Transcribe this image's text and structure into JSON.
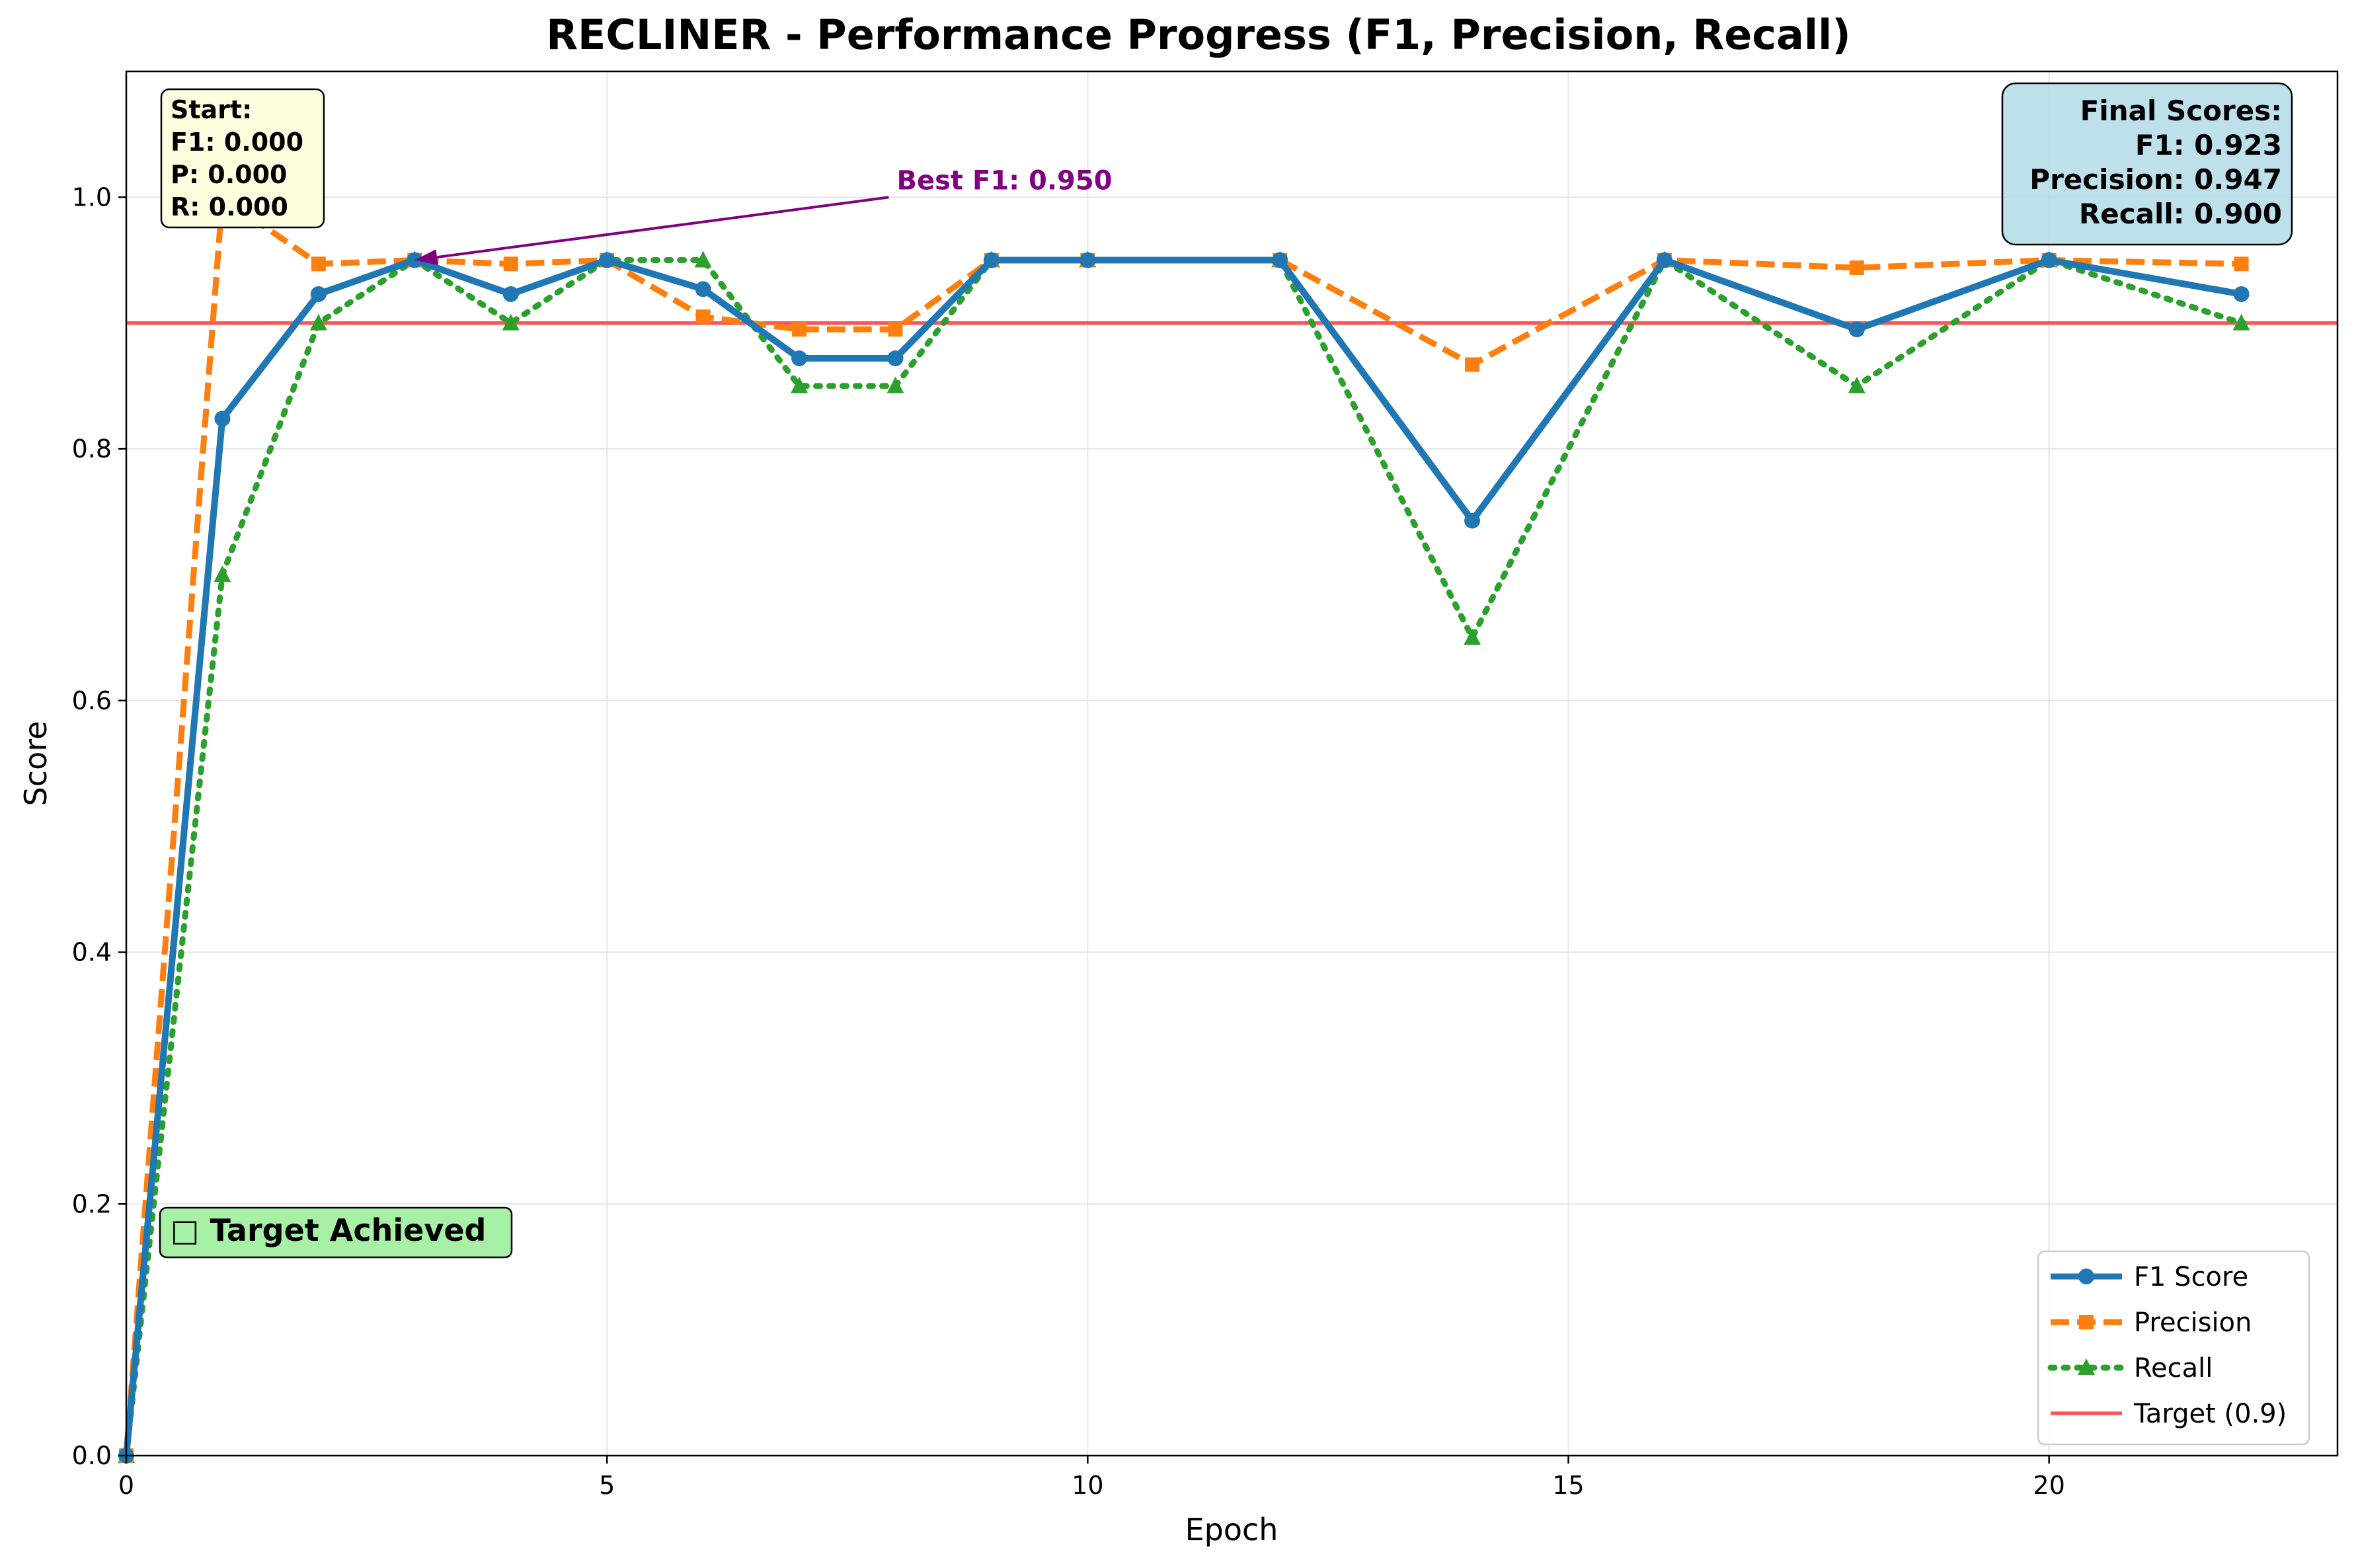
{
  "chart_data": {
    "type": "line",
    "title": "RECLINER - Performance Progress (F1, Precision, Recall)",
    "xlabel": "Epoch",
    "ylabel": "Score",
    "xlim": [
      0,
      23
    ],
    "ylim": [
      0,
      1.1
    ],
    "x_ticks": [
      0,
      5,
      10,
      15,
      20
    ],
    "x_tick_labels": [
      "0",
      "5",
      "10",
      "15",
      "20"
    ],
    "y_ticks": [
      0.0,
      0.2,
      0.4,
      0.6,
      0.8,
      1.0
    ],
    "y_tick_labels": [
      "0.0",
      "0.2",
      "0.4",
      "0.6",
      "0.8",
      "1.0"
    ],
    "grid": true,
    "legend_position": "bottom-right",
    "x": [
      0,
      1,
      2,
      3,
      4,
      5,
      6,
      7,
      8,
      9,
      10,
      12,
      14,
      16,
      18,
      20,
      22
    ],
    "series": [
      {
        "name": "F1 Score",
        "color": "#1f77b4",
        "style": "solid",
        "marker": "circle",
        "values": [
          0.0,
          0.824,
          0.923,
          0.95,
          0.923,
          0.95,
          0.927,
          0.872,
          0.872,
          0.95,
          0.95,
          0.95,
          0.743,
          0.95,
          0.895,
          0.95,
          0.923
        ]
      },
      {
        "name": "Precision",
        "color": "#ff7f0e",
        "style": "dashed",
        "marker": "square",
        "values": [
          0.0,
          1.0,
          0.947,
          0.95,
          0.947,
          0.95,
          0.905,
          0.895,
          0.895,
          0.95,
          0.95,
          0.95,
          0.867,
          0.95,
          0.944,
          0.95,
          0.947
        ]
      },
      {
        "name": "Recall",
        "color": "#2ca02c",
        "style": "dotted",
        "marker": "triangle",
        "values": [
          0.0,
          0.7,
          0.9,
          0.95,
          0.9,
          0.95,
          0.95,
          0.85,
          0.85,
          0.95,
          0.95,
          0.95,
          0.65,
          0.95,
          0.85,
          0.95,
          0.9
        ]
      }
    ],
    "target": {
      "name": "Target (0.9)",
      "value": 0.9,
      "color": "#ff5555"
    },
    "annotations": {
      "start_box": [
        "Start:",
        "F1: 0.000",
        "P: 0.000",
        "R: 0.000"
      ],
      "final_box": [
        "Final Scores:",
        "F1: 0.923",
        "Precision: 0.947",
        "Recall: 0.900"
      ],
      "best": {
        "text": "Best F1: 0.950",
        "x": 3,
        "y": 0.95,
        "text_x": 8,
        "text_y": 1.0,
        "color": "#800080"
      },
      "target_achieved": "□ Target Achieved"
    }
  }
}
